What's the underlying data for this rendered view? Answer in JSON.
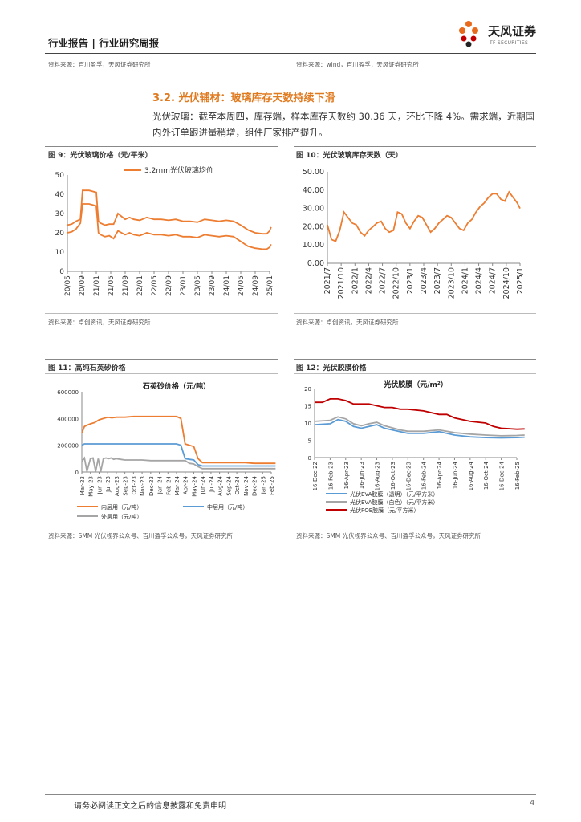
{
  "header": {
    "title": "行业报告 | 行业研究周报",
    "logo_cn": "天风证券",
    "logo_en": "TF SECURITIES"
  },
  "top_sources": {
    "left": "资料来源：百川盈孚，天风证券研究所",
    "right": "资料来源：wind，百川盈孚，天风证券研究所"
  },
  "section": {
    "title": "3.2. 光伏辅材：玻璃库存天数持续下滑",
    "paragraph": "光伏玻璃：截至本周四，库存端，样本库存天数约 30.36 天，环比下降 4%。需求端，近期国内外订单跟进量稍增，组件厂家排产提升。"
  },
  "figures": {
    "fig9": {
      "title": "图 9：光伏玻璃价格（元/平米）",
      "source": "资料来源：卓创资讯，天风证券研究所"
    },
    "fig10": {
      "title": "图 10：光伏玻璃库存天数（天）",
      "source": "资料来源：卓创资讯，天风证券研究所"
    },
    "fig11": {
      "title": "图 11：高纯石英砂价格",
      "source": "资料来源：SMM 光伏视界公众号、百川盈孚公众号，天风证券研究所"
    },
    "fig12": {
      "title": "图 12：光伏胶膜价格",
      "source": "资料来源：SMM 光伏视界公众号、百川盈孚公众号，天风证券研究所"
    }
  },
  "footer": {
    "disclaimer": "请务必阅读正文之后的信息披露和免责申明",
    "page": "4"
  },
  "chart_data": [
    {
      "id": "fig9",
      "type": "line",
      "title": "",
      "x_ticks": [
        "20/05",
        "20/09",
        "21/01",
        "21/05",
        "21/09",
        "22/01",
        "22/05",
        "22/09",
        "23/01",
        "23/05",
        "23/09",
        "24/01",
        "24/05",
        "24/09",
        "25/01"
      ],
      "ylim": [
        0,
        50
      ],
      "y_ticks": [
        0,
        10,
        20,
        30,
        40,
        50
      ],
      "legend_position": "top",
      "series": [
        {
          "name": "3.2mm光伏玻璃均价",
          "color": "#ed7d31",
          "x": [
            0,
            0.3,
            0.6,
            0.9,
            1.05,
            1.5,
            2.0,
            2.15,
            2.3,
            2.6,
            2.9,
            3.2,
            3.5,
            4.0,
            4.3,
            4.6,
            5.0,
            5.5,
            6.0,
            6.5,
            7.0,
            7.5,
            8.0,
            8.5,
            9.0,
            9.5,
            10.0,
            10.5,
            11.0,
            11.5,
            12.0,
            12.5,
            13.0,
            13.5,
            13.8,
            14.0,
            14.1
          ],
          "y": [
            24,
            24.5,
            26,
            27,
            42,
            42,
            41,
            26,
            25,
            24,
            24.5,
            24.5,
            30,
            27,
            28,
            27,
            26.5,
            28,
            27,
            27,
            26.5,
            27,
            26,
            26,
            25.5,
            27,
            26.5,
            26,
            26.5,
            26,
            24,
            21.5,
            20,
            19.5,
            19.5,
            21,
            23
          ]
        },
        {
          "name": "",
          "color": "#ed7d31",
          "x": [
            0,
            0.3,
            0.6,
            0.9,
            1.05,
            1.5,
            2.0,
            2.15,
            2.3,
            2.6,
            2.9,
            3.2,
            3.5,
            4.0,
            4.3,
            4.6,
            5.0,
            5.5,
            6.0,
            6.5,
            7.0,
            7.5,
            8.0,
            8.5,
            9.0,
            9.5,
            10.0,
            10.5,
            11.0,
            11.5,
            12.0,
            12.5,
            13.0,
            13.5,
            13.8,
            14.0,
            14.1
          ],
          "y": [
            20,
            20.5,
            22,
            25,
            35,
            35,
            34,
            20,
            19,
            18,
            18.5,
            17,
            21,
            19,
            20,
            19,
            18.5,
            20,
            19,
            19,
            18.5,
            19,
            18,
            18,
            17.5,
            19,
            18.5,
            18,
            18.5,
            18,
            15.5,
            13,
            12,
            11.5,
            11.5,
            12.5,
            14
          ]
        }
      ]
    },
    {
      "id": "fig10",
      "type": "line",
      "title": "",
      "x_ticks": [
        "2021/7",
        "2021/10",
        "2022/1",
        "2022/4",
        "2022/7",
        "2022/10",
        "2023/1",
        "2023/4",
        "2023/7",
        "2023/10",
        "2024/1",
        "2024/4",
        "2024/7",
        "2024/10",
        "2025/1"
      ],
      "ylim": [
        0,
        50
      ],
      "y_ticks": [
        "0.00",
        "10.00",
        "20.00",
        "30.00",
        "40.00",
        "50.00"
      ],
      "series": [
        {
          "name": "",
          "color": "#ed7d31",
          "x": [
            0,
            0.3,
            0.6,
            0.9,
            1.2,
            1.5,
            1.8,
            2.1,
            2.4,
            2.7,
            3.0,
            3.3,
            3.6,
            3.9,
            4.2,
            4.5,
            4.8,
            5.1,
            5.4,
            5.7,
            6.0,
            6.3,
            6.6,
            6.9,
            7.2,
            7.5,
            7.8,
            8.1,
            8.4,
            8.7,
            9.0,
            9.3,
            9.6,
            9.9,
            10.2,
            10.5,
            10.8,
            11.1,
            11.4,
            11.7,
            12.0,
            12.3,
            12.6,
            12.9,
            13.2,
            13.5,
            13.8,
            14.0
          ],
          "y": [
            21,
            13,
            12,
            18,
            28,
            25,
            22,
            21,
            17,
            15,
            18,
            20,
            22,
            23,
            19,
            17,
            18,
            28,
            27,
            22,
            19,
            23,
            26,
            25,
            21,
            17,
            19,
            22,
            24,
            26,
            25,
            22,
            19,
            18,
            22,
            24,
            28,
            31,
            33,
            36,
            38,
            38,
            35,
            34,
            39,
            36,
            33,
            30
          ]
        }
      ]
    },
    {
      "id": "fig11",
      "type": "line",
      "title": "石英砂价格（元/吨）",
      "x_ticks": [
        "Mar-23",
        "May-23",
        "Jun-23",
        "Jul-23",
        "Aug-23",
        "Sep-23",
        "Oct-23",
        "Nov-23",
        "Dec-23",
        "Jan-24",
        "Feb-24",
        "Mar-24",
        "Apr-24",
        "May-24",
        "Jun-24",
        "Jul-24",
        "Aug-24",
        "Sep-24",
        "Oct-24",
        "Nov-24",
        "Dec-24",
        "Jan-25",
        "Feb-25"
      ],
      "ylim": [
        0,
        600000
      ],
      "y_ticks": [
        "0",
        "200000",
        "400000",
        "600000"
      ],
      "legend_position": "bottom",
      "series": [
        {
          "name": "内层用（元/吨）",
          "color": "#ed7d31",
          "x": [
            0,
            0.3,
            0.6,
            1.0,
            1.5,
            2.0,
            2.5,
            3.0,
            3.5,
            4.0,
            4.5,
            5.0,
            6.0,
            7.0,
            8.0,
            9.0,
            10.0,
            11.0,
            11.5,
            12.0,
            12.5,
            13.0,
            13.5,
            14.0,
            15.0,
            16.0,
            17.0,
            18.0,
            19.0,
            20.0,
            21.0,
            22.0,
            22.5
          ],
          "y": [
            290000,
            340000,
            350000,
            360000,
            370000,
            390000,
            400000,
            410000,
            405000,
            410000,
            410000,
            410000,
            415000,
            415000,
            415000,
            415000,
            415000,
            415000,
            400000,
            210000,
            200000,
            190000,
            100000,
            70000,
            70000,
            70000,
            70000,
            70000,
            70000,
            65000,
            65000,
            65000,
            65000
          ]
        },
        {
          "name": "中层用（元/吨）",
          "color": "#5b9bd5",
          "x": [
            0,
            0.3,
            1.0,
            2.0,
            3.0,
            4.0,
            5.0,
            6.0,
            7.0,
            8.0,
            9.0,
            10.0,
            11.0,
            11.5,
            12.0,
            12.5,
            13.0,
            13.5,
            14.0,
            15.0,
            16.0,
            17.0,
            18.0,
            19.0,
            20.0,
            21.0,
            22.0,
            22.5
          ],
          "y": [
            200000,
            210000,
            210000,
            210000,
            210000,
            210000,
            210000,
            210000,
            210000,
            210000,
            210000,
            210000,
            210000,
            200000,
            100000,
            95000,
            90000,
            55000,
            45000,
            45000,
            45000,
            45000,
            45000,
            45000,
            45000,
            45000,
            45000,
            45000
          ]
        },
        {
          "name": "外层用（元/吨）",
          "color": "#a5a5a5",
          "x": [
            0,
            0.3,
            0.6,
            1.0,
            1.3,
            1.6,
            1.9,
            2.2,
            2.5,
            2.8,
            3.1,
            3.4,
            3.7,
            4.0,
            4.5,
            5.0,
            6.0,
            7.0,
            8.0,
            9.0,
            10.0,
            11.0,
            12.0,
            12.5,
            13.0,
            13.5,
            14.0,
            15.0,
            16.0,
            17.0,
            18.0,
            19.0,
            20.0,
            21.0,
            22.0,
            22.5
          ],
          "y": [
            80000,
            105000,
            5000,
            100000,
            105000,
            5000,
            100000,
            5000,
            100000,
            105000,
            100000,
            105000,
            95000,
            100000,
            95000,
            90000,
            90000,
            90000,
            85000,
            85000,
            85000,
            85000,
            85000,
            65000,
            60000,
            40000,
            25000,
            25000,
            25000,
            25000,
            25000,
            25000,
            25000,
            25000,
            25000,
            25000
          ]
        }
      ]
    },
    {
      "id": "fig12",
      "type": "line",
      "title": "光伏胶膜（元/m²）",
      "x_ticks": [
        "16-Dec-22",
        "16-Feb-23",
        "16-Apr-23",
        "16-Jun-23",
        "16-Aug-23",
        "16-Oct-23",
        "16-Dec-23",
        "16-Feb-24",
        "16-Apr-24",
        "16-Jun-24",
        "16-Aug-24",
        "16-Oct-24",
        "16-Dec-24",
        "16-Feb-25"
      ],
      "ylim": [
        0,
        20
      ],
      "y_ticks": [
        "0",
        "5",
        "10",
        "15",
        "20"
      ],
      "legend_position": "bottom",
      "series": [
        {
          "name": "光伏EVA胶膜（透明）（元/平方米）",
          "color": "#5b9bd5",
          "x": [
            0,
            1,
            1.5,
            2,
            2.5,
            3,
            3.5,
            4,
            4.5,
            5,
            5.5,
            6,
            7,
            8,
            9,
            10,
            11,
            12,
            13,
            13.5
          ],
          "y": [
            9.5,
            9.8,
            11,
            10.5,
            9,
            8.5,
            9,
            9.5,
            8.5,
            8,
            7.5,
            7,
            7,
            7.5,
            6.5,
            6,
            5.8,
            5.7,
            5.8,
            5.9
          ]
        },
        {
          "name": "光伏EVA胶膜（白色）（元/平方米）",
          "color": "#a5a5a5",
          "x": [
            0,
            1,
            1.5,
            2,
            2.5,
            3,
            3.5,
            4,
            4.5,
            5,
            5.5,
            6,
            7,
            8,
            9,
            10,
            11,
            12,
            13,
            13.5
          ],
          "y": [
            10.5,
            10.8,
            11.8,
            11.2,
            9.8,
            9.2,
            9.8,
            10.2,
            9.2,
            8.6,
            8,
            7.6,
            7.6,
            8,
            7.2,
            6.8,
            6.5,
            6.3,
            6.4,
            6.5
          ]
        },
        {
          "name": "光伏POE胶膜（元/平方米）",
          "color": "#c00000",
          "x": [
            0,
            0.5,
            1,
            1.5,
            2,
            2.5,
            3,
            3.5,
            4,
            4.5,
            5,
            5.5,
            6,
            7,
            8,
            8.5,
            9,
            10,
            11,
            11.5,
            12,
            13,
            13.5
          ],
          "y": [
            16,
            16,
            17,
            17,
            16.5,
            15.5,
            15.5,
            15.5,
            15,
            14.5,
            14.5,
            14,
            14,
            13.5,
            12.5,
            12.5,
            11.5,
            10.5,
            10,
            9,
            8.5,
            8.2,
            8.3
          ]
        }
      ]
    }
  ]
}
